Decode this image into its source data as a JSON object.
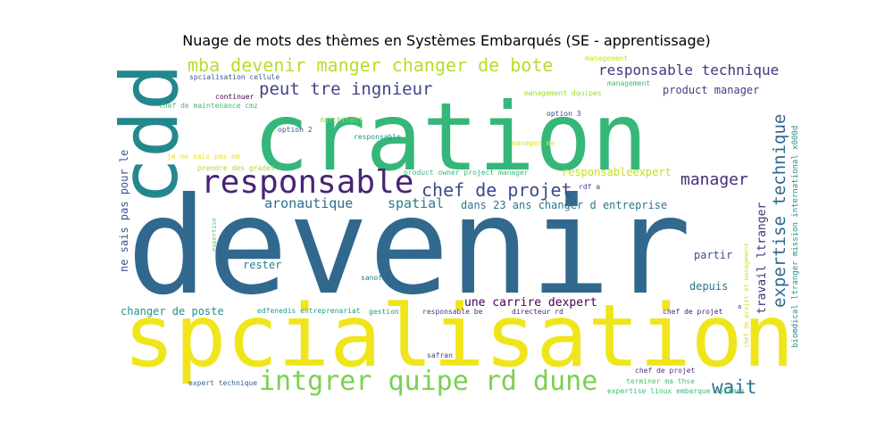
{
  "chart_data": {
    "type": "wordcloud",
    "title": "Nuage de mots des thèmes en Systèmes Embarqués (SE - apprentissage)",
    "background": "#ffffff",
    "colormap": "viridis",
    "words": [
      {
        "text": "devenir",
        "color": "#31688e"
      },
      {
        "text": "spcialisation",
        "color": "#f0e51b"
      },
      {
        "text": "cration",
        "color": "#35b779"
      },
      {
        "text": "cdd",
        "color": "#23888e"
      },
      {
        "text": "responsable",
        "color": "#482475"
      },
      {
        "text": "intgrer quipe rd dune",
        "color": "#7ad151"
      },
      {
        "text": "mba devenir manger changer de bote",
        "color": "#b5de2b"
      },
      {
        "text": "chef de projet",
        "color": "#3e4a89"
      },
      {
        "text": "peut tre ingnieur",
        "color": "#414487"
      },
      {
        "text": "expertise technique",
        "color": "#31688e"
      },
      {
        "text": "responsable technique",
        "color": "#463480"
      },
      {
        "text": "manager",
        "color": "#472d7b"
      },
      {
        "text": "aronautique",
        "color": "#2e6e8e"
      },
      {
        "text": "spatial",
        "color": "#287c8e"
      },
      {
        "text": "wait",
        "color": "#2c728e"
      },
      {
        "text": "une carrire dexpert",
        "color": "#440154"
      },
      {
        "text": "ne sais pas pour le",
        "color": "#3b528b"
      },
      {
        "text": "travail ltranger",
        "color": "#46327e"
      },
      {
        "text": "dans 23 ans changer d entreprise",
        "color": "#2a788e"
      },
      {
        "text": "product manager",
        "color": "#433e85"
      },
      {
        "text": "changer de poste",
        "color": "#20928c"
      },
      {
        "text": "partir",
        "color": "#3b528b"
      },
      {
        "text": "depuis",
        "color": "#2c728e"
      },
      {
        "text": "rester",
        "color": "#26828e"
      },
      {
        "text": "responsableexpert",
        "color": "#c2df23"
      },
      {
        "text": "biomdical ltranger mission international x000d",
        "color": "#21918c"
      },
      {
        "text": "management",
        "color": "#d0e11c"
      },
      {
        "text": "spcialisation cellule",
        "color": "#38598c"
      },
      {
        "text": "continuer",
        "color": "#440154"
      },
      {
        "text": "management dquipes",
        "color": "#a0da39"
      },
      {
        "text": "chef de maintenance cmz",
        "color": "#3dbc74"
      },
      {
        "text": "darchitect",
        "color": "#90d743"
      },
      {
        "text": "option 3",
        "color": "#3f4788"
      },
      {
        "text": "option 2",
        "color": "#3b528b"
      },
      {
        "text": "responsable",
        "color": "#1f968b"
      },
      {
        "text": "manager me",
        "color": "#dfe318"
      },
      {
        "text": "je ne sais pas me",
        "color": "#e5e419"
      },
      {
        "text": "prendre des grades",
        "color": "#a8db34"
      },
      {
        "text": "product owner project manager",
        "color": "#37b878"
      },
      {
        "text": "rdf a",
        "color": "#424086"
      },
      {
        "text": "expertise",
        "color": "#5ec962"
      },
      {
        "text": "sanofi",
        "color": "#2a788e"
      },
      {
        "text": "edfenedis entreprenariat",
        "color": "#1e9d89"
      },
      {
        "text": "gestion",
        "color": "#1f988b"
      },
      {
        "text": "responsable be",
        "color": "#453781"
      },
      {
        "text": "directeur rd",
        "color": "#482173"
      },
      {
        "text": "chef de projet",
        "color": "#481a6c"
      },
      {
        "text": "safran",
        "color": "#433e85"
      },
      {
        "text": "chef de projet",
        "color": "#46307e"
      },
      {
        "text": "expert technique",
        "color": "#355f8d"
      },
      {
        "text": "terminer ma thse",
        "color": "#4ac16d"
      },
      {
        "text": "expertise linux embarque systmes",
        "color": "#3aba76"
      },
      {
        "text": "chef de projet et management",
        "color": "#d2e21b"
      },
      {
        "text": "a",
        "color": "#443983"
      },
      {
        "text": "management",
        "color": "#3fbc73"
      }
    ]
  }
}
